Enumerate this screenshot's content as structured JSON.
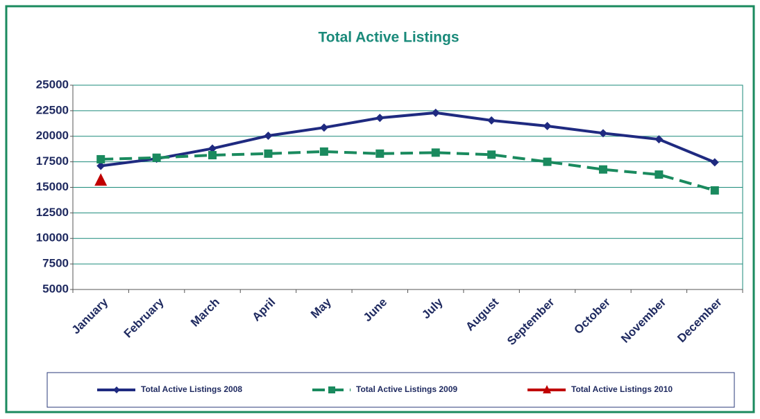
{
  "chart_data": {
    "type": "line",
    "title": "Total  Active Listings",
    "categories": [
      "January",
      "February",
      "March",
      "April",
      "May",
      "June",
      "July",
      "August",
      "September",
      "October",
      "November",
      "December"
    ],
    "series": [
      {
        "name": "Total Active Listings 2008",
        "color": "#1f2a80",
        "marker": "diamond",
        "dash": false,
        "values": [
          17100,
          17800,
          18800,
          20050,
          20850,
          21800,
          22300,
          21550,
          21000,
          20300,
          19700,
          17450
        ]
      },
      {
        "name": "Total Active Listings 2009",
        "color": "#1a8a5e",
        "marker": "square",
        "dash": true,
        "values": [
          17750,
          17900,
          18150,
          18300,
          18500,
          18300,
          18400,
          18200,
          17500,
          16750,
          16250,
          14700
        ]
      },
      {
        "name": "Total Active Listings 2010",
        "color": "#c00000",
        "marker": "triangle",
        "dash": false,
        "values": [
          15700,
          null,
          null,
          null,
          null,
          null,
          null,
          null,
          null,
          null,
          null,
          null
        ]
      }
    ],
    "ylim": [
      5000,
      25000
    ],
    "yticks": [
      5000,
      7500,
      10000,
      12500,
      15000,
      17500,
      20000,
      22500,
      25000
    ],
    "grid": true
  }
}
